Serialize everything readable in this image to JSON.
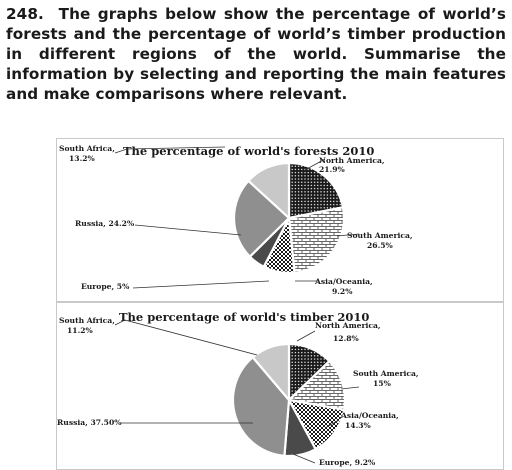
{
  "prompt": {
    "number": "248.",
    "text": "The graphs below show the percentage of world’s forests and the percentage of world’s timber production in different regions of the world. Summarise the information by selecting and reporting the main features and make comparisons where relevant."
  },
  "colors": {
    "north_america": "#1a1a1a",
    "south_america": "#ffffff",
    "asia_oceania": "#ffffff",
    "europe": "#4a4a4a",
    "russia": "#8f8f8f",
    "south_africa": "#c8c8c8"
  },
  "chart_data": [
    {
      "type": "pie",
      "title": "The percentage of world's forests 2010",
      "slices": [
        {
          "key": "north_america",
          "name": "North America,",
          "label": "21.9%",
          "value": 21.9,
          "pattern": "dots-dark"
        },
        {
          "key": "south_america",
          "name": "South America,",
          "label": "26.5%",
          "value": 26.5,
          "pattern": "bricks"
        },
        {
          "key": "asia_oceania",
          "name": "Asia/Oceania,",
          "label": "9.2%",
          "value": 9.2,
          "pattern": "checks"
        },
        {
          "key": "europe",
          "name": "Europe,",
          "label": "5%",
          "value": 5,
          "pattern": "solid"
        },
        {
          "key": "russia",
          "name": "Russia,",
          "label": "24.2%",
          "value": 24.2,
          "pattern": "solid"
        },
        {
          "key": "south_africa",
          "name": "South Africa,",
          "label": "13.2%",
          "value": 13.2,
          "pattern": "solid"
        }
      ],
      "legend": "callout labels around pie"
    },
    {
      "type": "pie",
      "title": "The percentage of world's timber 2010",
      "slices": [
        {
          "key": "north_america",
          "name": "North America,",
          "label": "12.8%",
          "value": 12.8,
          "pattern": "dots-dark"
        },
        {
          "key": "south_america",
          "name": "South America,",
          "label": "15%",
          "value": 15,
          "pattern": "bricks"
        },
        {
          "key": "asia_oceania",
          "name": "Asia/Oceania,",
          "label": "14.3%",
          "value": 14.3,
          "pattern": "checks"
        },
        {
          "key": "europe",
          "name": "Europe,",
          "label": "9.2%",
          "value": 9.2,
          "pattern": "solid"
        },
        {
          "key": "russia",
          "name": "Russia,",
          "label": "37.50%",
          "value": 37.5,
          "pattern": "solid"
        },
        {
          "key": "south_africa",
          "name": "South Africa,",
          "label": "11.2%",
          "value": 11.2,
          "pattern": "solid"
        }
      ],
      "legend": "callout labels around pie"
    }
  ]
}
